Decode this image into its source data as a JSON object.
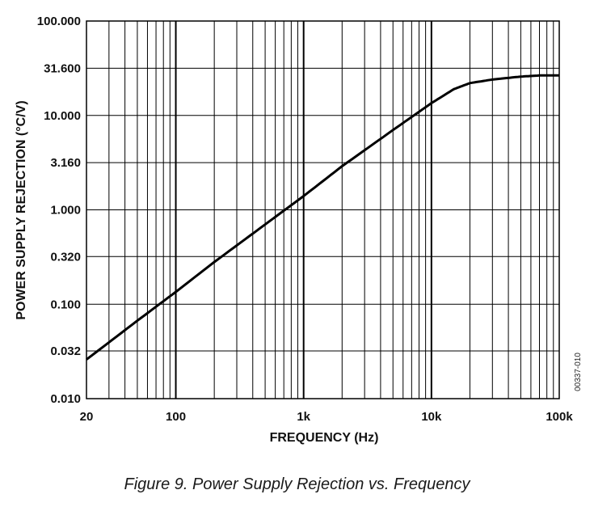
{
  "caption": "Figure 9. Power Supply Rejection vs. Frequency",
  "figure_code": "00337-010",
  "chart_data": {
    "type": "line",
    "xlabel": "FREQUENCY (Hz)",
    "ylabel": "POWER SUPPLY REJECTION (°C/V)",
    "xscale": "log",
    "yscale": "log",
    "xlim": [
      20,
      100000
    ],
    "ylim": [
      0.01,
      100
    ],
    "x_ticks": [
      20,
      100,
      1000,
      10000,
      100000
    ],
    "x_tick_labels": [
      "20",
      "100",
      "1k",
      "10k",
      "100k"
    ],
    "y_ticks": [
      0.01,
      0.032,
      0.1,
      0.32,
      1,
      3.16,
      10,
      31.6,
      100
    ],
    "y_tick_labels": [
      "0.010",
      "0.032",
      "0.100",
      "0.320",
      "1.000",
      "3.160",
      "10.000",
      "31.600",
      "100.000"
    ],
    "grid": true,
    "series": [
      {
        "color": "#000000",
        "x": [
          20,
          50,
          100,
          200,
          500,
          1000,
          2000,
          5000,
          10000,
          15000,
          20000,
          30000,
          50000,
          70000,
          100000
        ],
        "y": [
          0.026,
          0.067,
          0.135,
          0.28,
          0.7,
          1.4,
          2.9,
          7.0,
          13.5,
          19.0,
          22.0,
          24.0,
          25.8,
          26.5,
          26.5
        ]
      }
    ]
  }
}
